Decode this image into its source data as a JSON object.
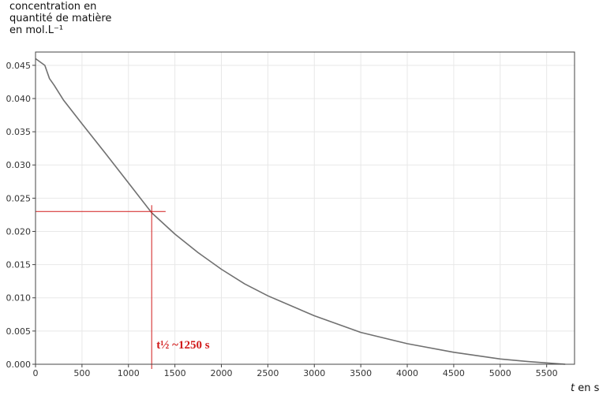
{
  "chart_data": {
    "type": "line",
    "ylabel_lines": [
      "concentration en",
      "quantité de matière",
      "en mol.L⁻¹"
    ],
    "xlabel_italic": "t",
    "xlabel_rest": " en s",
    "xlim": [
      0,
      5800
    ],
    "ylim": [
      0,
      0.047
    ],
    "grid": true,
    "x_ticks": [
      0,
      500,
      1000,
      1500,
      2000,
      2500,
      3000,
      3500,
      4000,
      4500,
      5000,
      5500
    ],
    "x_tick_labels": [
      "0",
      "500",
      "1000",
      "1500",
      "2000",
      "2500",
      "3000",
      "3500",
      "4000",
      "4500",
      "5000",
      "5500"
    ],
    "y_ticks": [
      0,
      0.005,
      0.01,
      0.015,
      0.02,
      0.025,
      0.03,
      0.035,
      0.04,
      0.045
    ],
    "y_tick_labels": [
      "0.000",
      "0.005",
      "0.010",
      "0.015",
      "0.020",
      "0.025",
      "0.030",
      "0.035",
      "0.040",
      "0.045"
    ],
    "series": [
      {
        "color": "#707070",
        "x": [
          0,
          100,
          150,
          200,
          300,
          500,
          750,
          1000,
          1250,
          1500,
          1750,
          2000,
          2250,
          2500,
          3000,
          3500,
          4000,
          4500,
          5000,
          5300,
          5500,
          5700
        ],
        "y": [
          0.046,
          0.045,
          0.043,
          0.042,
          0.0398,
          0.0362,
          0.0318,
          0.0273,
          0.0228,
          0.0196,
          0.0168,
          0.0143,
          0.0121,
          0.0103,
          0.0073,
          0.0048,
          0.0031,
          0.0018,
          0.0008,
          0.0004,
          0.0002,
          0.0
        ]
      }
    ],
    "annotation": {
      "text": "t½ ~1250 s",
      "x": 1250,
      "y": 0.023,
      "color": "#d11a1a",
      "h_line_x_end": 1400
    }
  },
  "colors": {
    "axis": "#444444",
    "grid": "#e8e8e8",
    "annotation": "#d11a1a"
  }
}
